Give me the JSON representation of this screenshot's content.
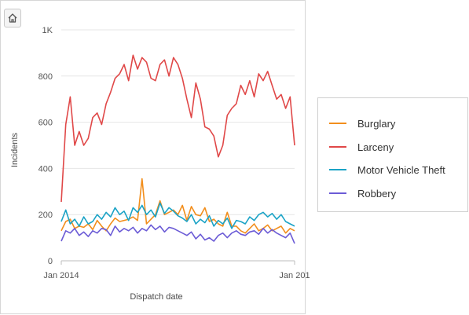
{
  "toolbar": {
    "home_icon": "home-icon"
  },
  "chart_data": {
    "type": "line",
    "title": "",
    "xlabel": "Dispatch date",
    "ylabel": "Incidents",
    "ylim": [
      0,
      1000
    ],
    "y_ticks": [
      0,
      200,
      400,
      600,
      800,
      1000
    ],
    "y_tick_labels": [
      "0",
      "200",
      "400",
      "600",
      "800",
      "1K"
    ],
    "x_tick_labels": [
      "Jan 2014",
      "Jan 201"
    ],
    "grid": true,
    "legend_placement": "right",
    "x": [
      "2014-01-05",
      "2014-01-12",
      "2014-01-19",
      "2014-01-26",
      "2014-02-02",
      "2014-02-09",
      "2014-02-16",
      "2014-02-23",
      "2014-03-02",
      "2014-03-09",
      "2014-03-16",
      "2014-03-23",
      "2014-03-30",
      "2014-04-06",
      "2014-04-13",
      "2014-04-20",
      "2014-04-27",
      "2014-05-04",
      "2014-05-11",
      "2014-05-18",
      "2014-05-25",
      "2014-06-01",
      "2014-06-08",
      "2014-06-15",
      "2014-06-22",
      "2014-06-29",
      "2014-07-06",
      "2014-07-13",
      "2014-07-20",
      "2014-07-27",
      "2014-08-03",
      "2014-08-10",
      "2014-08-17",
      "2014-08-24",
      "2014-08-31",
      "2014-09-07",
      "2014-09-14",
      "2014-09-21",
      "2014-09-28",
      "2014-10-05",
      "2014-10-12",
      "2014-10-19",
      "2014-10-26",
      "2014-11-02",
      "2014-11-09",
      "2014-11-16",
      "2014-11-23",
      "2014-11-30",
      "2014-12-07",
      "2014-12-14",
      "2014-12-21",
      "2014-12-28",
      "2015-01-04"
    ],
    "series": [
      {
        "name": "Burglary",
        "color": "#f28e1c",
        "values": [
          130,
          170,
          180,
          140,
          150,
          145,
          160,
          135,
          175,
          150,
          130,
          160,
          185,
          170,
          175,
          180,
          190,
          175,
          355,
          160,
          180,
          200,
          260,
          200,
          210,
          220,
          200,
          240,
          175,
          235,
          200,
          195,
          230,
          170,
          180,
          160,
          150,
          210,
          150,
          150,
          130,
          120,
          140,
          160,
          130,
          140,
          155,
          130,
          140,
          150,
          120,
          140,
          130
        ]
      },
      {
        "name": "Larceny",
        "color": "#e04848",
        "values": [
          255,
          590,
          710,
          500,
          560,
          500,
          530,
          620,
          640,
          590,
          680,
          730,
          790,
          810,
          850,
          780,
          890,
          830,
          880,
          860,
          790,
          780,
          850,
          870,
          800,
          880,
          850,
          790,
          700,
          620,
          770,
          700,
          580,
          570,
          540,
          450,
          500,
          630,
          660,
          680,
          760,
          720,
          780,
          710,
          810,
          780,
          820,
          760,
          700,
          720,
          660,
          710,
          500
        ]
      },
      {
        "name": "Motor Vehicle Theft",
        "color": "#1ba3c6",
        "values": [
          170,
          220,
          160,
          180,
          150,
          190,
          160,
          170,
          200,
          180,
          210,
          190,
          230,
          200,
          215,
          175,
          230,
          210,
          240,
          200,
          220,
          190,
          250,
          205,
          230,
          215,
          195,
          185,
          170,
          200,
          160,
          180,
          165,
          195,
          150,
          175,
          160,
          185,
          140,
          175,
          170,
          160,
          190,
          175,
          200,
          210,
          190,
          205,
          180,
          200,
          170,
          160,
          150
        ]
      },
      {
        "name": "Robbery",
        "color": "#6b5bd6",
        "values": [
          85,
          130,
          120,
          140,
          110,
          125,
          105,
          130,
          120,
          140,
          135,
          110,
          150,
          125,
          140,
          130,
          145,
          120,
          140,
          130,
          155,
          135,
          150,
          125,
          145,
          140,
          130,
          120,
          110,
          125,
          95,
          115,
          90,
          100,
          85,
          110,
          120,
          100,
          120,
          130,
          115,
          110,
          125,
          130,
          115,
          140,
          120,
          135,
          120,
          110,
          100,
          120,
          75
        ]
      }
    ]
  }
}
